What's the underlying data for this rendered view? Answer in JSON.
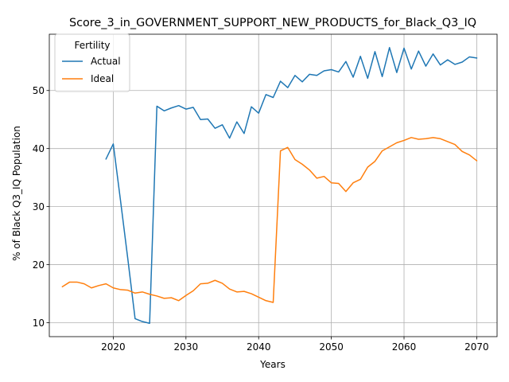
{
  "chart_data": {
    "type": "line",
    "title": "Score_3_in_GOVERNMENT_SUPPORT_NEW_PRODUCTS_for_Black_Q3_IQ",
    "xlabel": "Years",
    "ylabel": "% of Black Q3_IQ Population",
    "xlim": [
      2011.2,
      2072.8
    ],
    "ylim": [
      7.6,
      59.7
    ],
    "x_ticks": [
      2020,
      2030,
      2040,
      2050,
      2060,
      2070
    ],
    "y_ticks": [
      10,
      20,
      30,
      40,
      50
    ],
    "grid": true,
    "legend": {
      "title": "Fertility",
      "placement": "upper left"
    },
    "series": [
      {
        "name": "Actual",
        "color": "#1f77b4",
        "x": [
          2019,
          2020,
          2021,
          2022,
          2023,
          2024,
          2025,
          2026,
          2027,
          2028,
          2029,
          2030,
          2031,
          2032,
          2033,
          2034,
          2035,
          2036,
          2037,
          2038,
          2039,
          2040,
          2041,
          2042,
          2043,
          2044,
          2045,
          2046,
          2047,
          2048,
          2049,
          2050,
          2051,
          2052,
          2053,
          2054,
          2055,
          2056,
          2057,
          2058,
          2059,
          2060,
          2061,
          2062,
          2063,
          2064,
          2065,
          2066,
          2067,
          2068,
          2069,
          2070
        ],
        "values": [
          38.2,
          40.8,
          31.0,
          21.0,
          10.7,
          10.2,
          9.9,
          47.3,
          46.5,
          47.0,
          47.4,
          46.8,
          47.1,
          45.0,
          45.1,
          43.5,
          44.1,
          41.8,
          44.6,
          42.6,
          47.2,
          46.1,
          49.3,
          48.8,
          51.6,
          50.5,
          52.6,
          51.5,
          52.8,
          52.6,
          53.4,
          53.6,
          53.2,
          55.0,
          52.3,
          55.9,
          52.1,
          56.7,
          52.4,
          57.4,
          53.1,
          57.3,
          53.7,
          56.8,
          54.2,
          56.3,
          54.4,
          55.3,
          54.5,
          54.9,
          55.8,
          55.6
        ]
      },
      {
        "name": "Ideal",
        "color": "#ff7f0e",
        "x": [
          2013,
          2014,
          2015,
          2016,
          2017,
          2018,
          2019,
          2020,
          2021,
          2022,
          2023,
          2024,
          2025,
          2026,
          2027,
          2028,
          2029,
          2030,
          2031,
          2032,
          2033,
          2034,
          2035,
          2036,
          2037,
          2038,
          2039,
          2040,
          2041,
          2042,
          2043,
          2044,
          2045,
          2046,
          2047,
          2048,
          2049,
          2050,
          2051,
          2052,
          2053,
          2054,
          2055,
          2056,
          2057,
          2058,
          2059,
          2060,
          2061,
          2062,
          2063,
          2064,
          2065,
          2066,
          2067,
          2068,
          2069,
          2070
        ],
        "values": [
          16.2,
          17.0,
          17.0,
          16.7,
          16.0,
          16.4,
          16.7,
          16.0,
          15.7,
          15.6,
          15.1,
          15.3,
          14.9,
          14.6,
          14.2,
          14.3,
          13.8,
          14.7,
          15.5,
          16.7,
          16.8,
          17.3,
          16.8,
          15.8,
          15.3,
          15.4,
          15.0,
          14.4,
          13.8,
          13.5,
          39.6,
          40.2,
          38.1,
          37.3,
          36.3,
          34.9,
          35.2,
          34.1,
          34.0,
          32.6,
          34.1,
          34.7,
          36.8,
          37.8,
          39.6,
          40.3,
          41.0,
          41.4,
          41.9,
          41.6,
          41.7,
          41.9,
          41.7,
          41.2,
          40.7,
          39.5,
          38.9,
          37.9
        ]
      }
    ]
  }
}
